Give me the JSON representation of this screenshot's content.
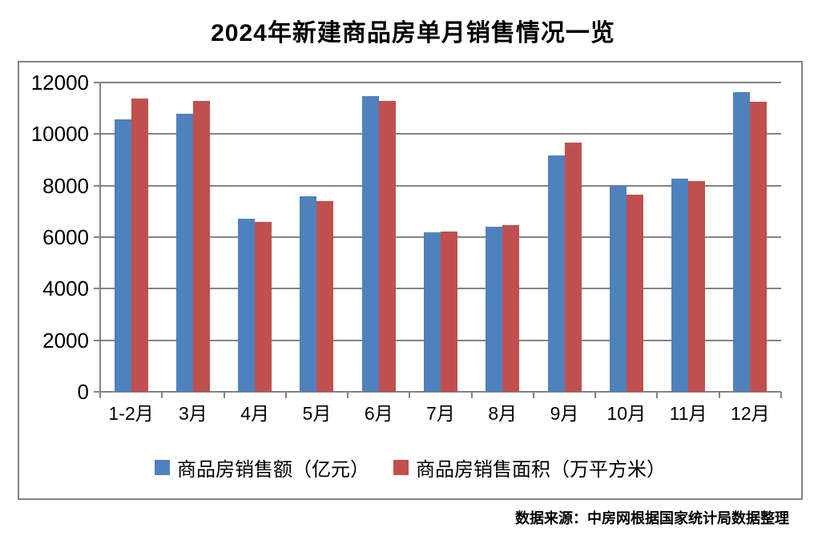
{
  "title": "2024年新建商品房单月销售情况一览",
  "source_note": "数据来源：中房网根据国家统计局数据整理",
  "colors": {
    "series1": "#4F81BD",
    "series2": "#C0504D",
    "grid": "#838383",
    "text": "#000000",
    "background": "#FFFFFF"
  },
  "chart_data": {
    "type": "bar",
    "title": "2024年新建商品房单月销售情况一览",
    "categories": [
      "1-2月",
      "3月",
      "4月",
      "5月",
      "6月",
      "7月",
      "8月",
      "9月",
      "10月",
      "11月",
      "12月"
    ],
    "series": [
      {
        "name": "商品房销售额（亿元）",
        "color": "#4F81BD",
        "values": [
          10566,
          10789,
          6712,
          7598,
          11468,
          6197,
          6393,
          9157,
          7975,
          8270,
          11625
        ]
      },
      {
        "name": "商品房销售面积（万平方米）",
        "color": "#C0504D",
        "values": [
          11369,
          11299,
          6584,
          7390,
          11274,
          6233,
          6453,
          9682,
          7646,
          8188,
          11267
        ]
      }
    ],
    "xlabel": "",
    "ylabel": "",
    "ylim": [
      0,
      12000
    ],
    "yticks": [
      0,
      2000,
      4000,
      6000,
      8000,
      10000,
      12000
    ],
    "grid": true,
    "gridcolor": "#838383",
    "legend_position": "bottom"
  }
}
